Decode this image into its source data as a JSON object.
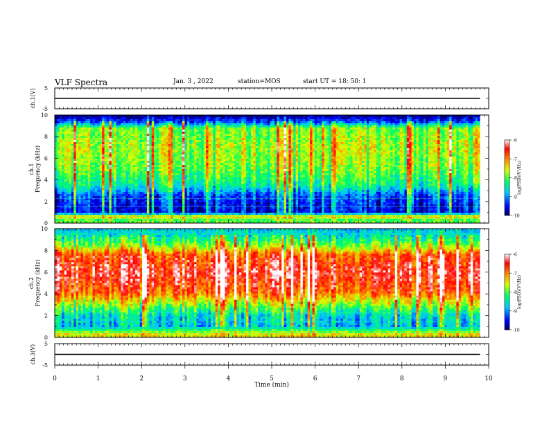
{
  "header": {
    "title": "VLF Spectra",
    "date": "Jan. 3 , 2022",
    "station": "station=MOS",
    "start_ut": "start UT = 18: 50: 1"
  },
  "chart_data": [
    {
      "type": "line",
      "panel": "ch1-waveform",
      "ylabel": "ch.1(V)",
      "yticks": [
        "5",
        "-5"
      ],
      "ylim": [
        -5,
        5
      ],
      "xlim": [
        0,
        10
      ],
      "series": [
        {
          "x": [
            0,
            9.8
          ],
          "y": [
            0,
            0
          ]
        }
      ]
    },
    {
      "type": "heatmap",
      "panel": "ch1-spectrogram",
      "ylabel": "ch.1 Frequency (kHz)",
      "ylabel_line1": "ch.1",
      "ylabel_line2": "Frequency (kHz)",
      "yticks": [
        "0",
        "2",
        "4",
        "6",
        "8",
        "10"
      ],
      "ylim": [
        0,
        10
      ],
      "xlim": [
        0,
        10
      ],
      "data_end_min": 9.8,
      "colorbar": {
        "label": "log(PSD)(V²/Hz)",
        "ticks": [
          "-6",
          "-7",
          "-8",
          "-9",
          "-10"
        ],
        "range": [
          -10,
          -6
        ]
      },
      "profile": [
        {
          "f": 0.3,
          "level": -8.0
        },
        {
          "f": 0.6,
          "level": -7.2
        },
        {
          "f": 1.0,
          "level": -9.6
        },
        {
          "f": 2.5,
          "level": -9.3
        },
        {
          "f": 3.5,
          "level": -8.4
        },
        {
          "f": 5.0,
          "level": -7.9
        },
        {
          "f": 7.0,
          "level": -7.7
        },
        {
          "f": 8.8,
          "level": -7.9
        },
        {
          "f": 9.3,
          "level": -9.2
        },
        {
          "f": 10.0,
          "level": -10.0
        }
      ]
    },
    {
      "type": "heatmap",
      "panel": "ch2-spectrogram",
      "ylabel": "ch.2 Frequency (kHz)",
      "ylabel_line1": "ch.2",
      "ylabel_line2": "Frequency (kHz)",
      "yticks": [
        "0",
        "2",
        "4",
        "6",
        "8",
        "10"
      ],
      "ylim": [
        0,
        10
      ],
      "xlim": [
        0,
        10
      ],
      "data_end_min": 9.8,
      "colorbar": {
        "label": "log(PSD)(V²/Hz)",
        "ticks": [
          "-6",
          "-7",
          "-8",
          "-9",
          "-10"
        ],
        "range": [
          -10,
          -6
        ]
      },
      "profile": [
        {
          "f": 0.3,
          "level": -7.5
        },
        {
          "f": 1.0,
          "level": -8.8
        },
        {
          "f": 2.0,
          "level": -8.6
        },
        {
          "f": 3.0,
          "level": -7.8
        },
        {
          "f": 4.2,
          "level": -6.8
        },
        {
          "f": 6.0,
          "level": -6.4
        },
        {
          "f": 7.6,
          "level": -6.8
        },
        {
          "f": 8.5,
          "level": -7.9
        },
        {
          "f": 9.5,
          "level": -8.6
        },
        {
          "f": 10.0,
          "level": -8.8
        }
      ]
    },
    {
      "type": "line",
      "panel": "ch3-waveform",
      "ylabel": "ch.3(V)",
      "yticks": [
        "5",
        "-5"
      ],
      "ylim": [
        -5,
        5
      ],
      "xlim": [
        0,
        10
      ],
      "series": [
        {
          "x": [
            0,
            9.8
          ],
          "y": [
            0,
            0
          ]
        }
      ]
    }
  ],
  "xaxis": {
    "label": "Time (min)",
    "ticks": [
      "0",
      "1",
      "2",
      "3",
      "4",
      "5",
      "6",
      "7",
      "8",
      "9",
      "10"
    ]
  }
}
